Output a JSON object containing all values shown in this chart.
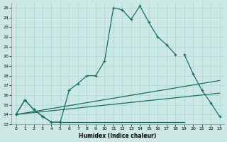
{
  "xlabel": "Humidex (Indice chaleur)",
  "bg_color": "#cce8e4",
  "line_color": "#1a6e64",
  "grid_color": "#aad8d4",
  "xlim": [
    -0.5,
    23.5
  ],
  "ylim": [
    13,
    25.5
  ],
  "xticks": [
    0,
    1,
    2,
    3,
    4,
    5,
    6,
    7,
    8,
    9,
    10,
    11,
    12,
    13,
    14,
    15,
    16,
    17,
    18,
    19,
    20,
    21,
    22,
    23
  ],
  "yticks": [
    13,
    14,
    15,
    16,
    17,
    18,
    19,
    20,
    21,
    22,
    23,
    24,
    25
  ],
  "curve1_x": [
    0,
    1,
    2,
    3,
    4,
    5,
    6,
    7,
    8,
    9,
    10,
    11,
    12,
    13,
    14,
    15,
    16,
    17,
    18
  ],
  "curve1_y": [
    14.0,
    15.5,
    14.5,
    13.8,
    13.2,
    13.2,
    16.5,
    17.2,
    18.0,
    18.0,
    19.5,
    25.0,
    24.8,
    23.8,
    25.2,
    23.5,
    22.0,
    21.2,
    20.2
  ],
  "curve2_x": [
    0,
    1,
    2,
    3,
    4,
    5,
    19,
    20,
    21,
    22,
    23
  ],
  "curve2_y": [
    14.0,
    15.5,
    14.5,
    13.8,
    13.2,
    13.2,
    20.2,
    18.2,
    16.5,
    15.2,
    13.8
  ],
  "line1_x": [
    0,
    23
  ],
  "line1_y": [
    14.0,
    17.5
  ],
  "line2_x": [
    0,
    23
  ],
  "line2_y": [
    14.0,
    16.2
  ]
}
